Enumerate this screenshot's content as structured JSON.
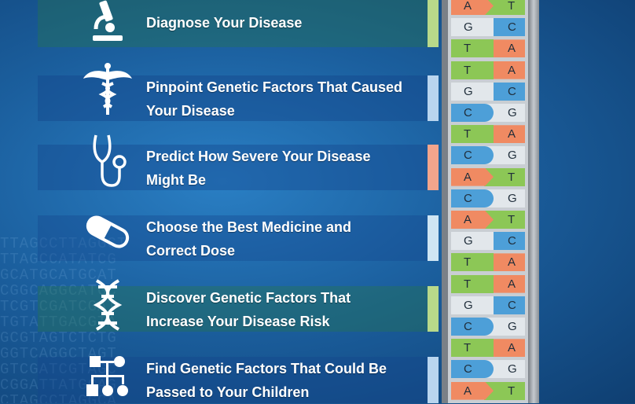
{
  "colors": {
    "A": "#f08a62",
    "T": "#8cc756",
    "G": "#e2e7eb",
    "C": "#4d9fd8"
  },
  "items": [
    {
      "icon": "microscope-icon",
      "lines": [
        "Diagnose Your Disease"
      ]
    },
    {
      "icon": "caduceus-icon",
      "lines": [
        "Pinpoint Genetic Factors That Caused",
        "Your Disease"
      ]
    },
    {
      "icon": "stethoscope-icon",
      "lines": [
        "Predict How Severe Your Disease",
        "Might Be"
      ]
    },
    {
      "icon": "pill-icon",
      "lines": [
        "Choose the Best Medicine and",
        "Correct Dose"
      ]
    },
    {
      "icon": "dna-icon",
      "lines": [
        "Discover Genetic Factors That",
        "Increase Your Disease Risk"
      ]
    },
    {
      "icon": "family-tree-icon",
      "lines": [
        "Find Genetic Factors That Could Be",
        "Passed to Your Children"
      ]
    }
  ],
  "dna_pairs": [
    [
      "A",
      "T"
    ],
    [
      "G",
      "C"
    ],
    [
      "T",
      "A"
    ],
    [
      "T",
      "A"
    ],
    [
      "G",
      "C"
    ],
    [
      "C",
      "G"
    ],
    [
      "T",
      "A"
    ],
    [
      "C",
      "G"
    ],
    [
      "A",
      "T"
    ],
    [
      "C",
      "G"
    ],
    [
      "A",
      "T"
    ],
    [
      "G",
      "C"
    ],
    [
      "T",
      "A"
    ],
    [
      "T",
      "A"
    ],
    [
      "G",
      "C"
    ],
    [
      "C",
      "G"
    ],
    [
      "T",
      "A"
    ],
    [
      "C",
      "G"
    ],
    [
      "A",
      "T"
    ]
  ],
  "background_sequence": "TTAGCCTTAGGCT\nTTAGCCATATCG\nGCATGCATGCAT\nCGGCAGGCATGC\nTCGTCGATCGAT\nTGTATTGACGTA\nGCGTAGTCTCTG\nGGTCAGGCTAGT\nGTCGATCGTAGC\nCGGATTATGCAG\nCTAGCCTAGGCA"
}
